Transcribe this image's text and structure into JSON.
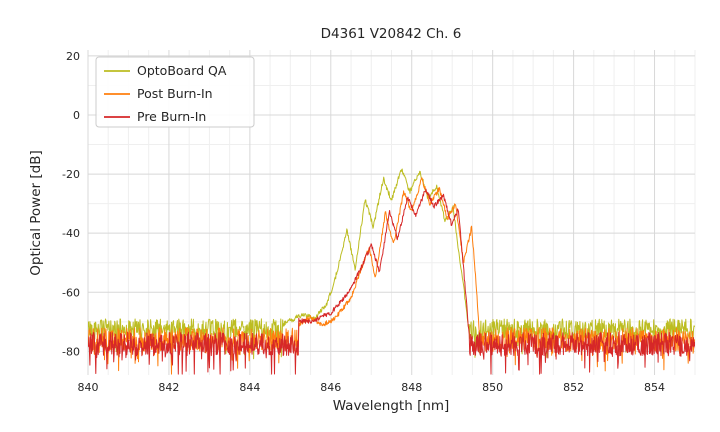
{
  "chart_data": {
    "type": "line",
    "title": "D4361 V20842 Ch. 6",
    "xlabel": "Wavelength [nm]",
    "ylabel": "Optical Power [dB]",
    "xlim": [
      840,
      855
    ],
    "ylim": [
      -88,
      22
    ],
    "xticks": [
      840,
      842,
      844,
      846,
      848,
      850,
      852,
      854
    ],
    "yticks": [
      20,
      0,
      -20,
      -40,
      -60,
      -80
    ],
    "grid": true,
    "legend_position": "upper left",
    "colors": {
      "grid_major": "#d8d8d8",
      "grid_minor": "#efefef",
      "text": "#262626",
      "background": "#ffffff"
    },
    "series": [
      {
        "name": "OptoBoard QA",
        "color": "#bcbd22",
        "baseline_db": -72.5,
        "noise_amp_db": 3.5,
        "spike_prob": 0.06,
        "spike_depth_db": 9,
        "peak_profile": [
          [
            844.8,
            -71
          ],
          [
            845.3,
            -67.5
          ],
          [
            845.6,
            -69
          ],
          [
            845.9,
            -64
          ],
          [
            846.1,
            -56
          ],
          [
            846.4,
            -39
          ],
          [
            846.6,
            -52
          ],
          [
            846.85,
            -28.5
          ],
          [
            847.05,
            -38
          ],
          [
            847.3,
            -21.5
          ],
          [
            847.5,
            -29
          ],
          [
            847.75,
            -18
          ],
          [
            847.95,
            -26
          ],
          [
            848.2,
            -19
          ],
          [
            848.4,
            -28
          ],
          [
            848.62,
            -24
          ],
          [
            848.82,
            -36
          ],
          [
            849.02,
            -31
          ],
          [
            849.18,
            -48
          ],
          [
            849.3,
            -60
          ],
          [
            849.4,
            -72
          ]
        ]
      },
      {
        "name": "Post Burn-In",
        "color": "#ff7f0e",
        "baseline_db": -76,
        "noise_amp_db": 4,
        "spike_prob": 0.08,
        "spike_depth_db": 10,
        "peak_profile": [
          [
            845.2,
            -71
          ],
          [
            845.5,
            -68.5
          ],
          [
            845.8,
            -71
          ],
          [
            846.1,
            -69
          ],
          [
            846.5,
            -62
          ],
          [
            846.75,
            -52
          ],
          [
            846.95,
            -45
          ],
          [
            847.1,
            -55
          ],
          [
            847.35,
            -33
          ],
          [
            847.55,
            -44
          ],
          [
            847.8,
            -26
          ],
          [
            848.0,
            -33
          ],
          [
            848.25,
            -21.5
          ],
          [
            848.45,
            -30
          ],
          [
            848.68,
            -25
          ],
          [
            848.88,
            -35
          ],
          [
            849.08,
            -30
          ],
          [
            849.28,
            -50
          ],
          [
            849.48,
            -38
          ],
          [
            849.58,
            -55
          ],
          [
            849.68,
            -76
          ]
        ]
      },
      {
        "name": "Pre Burn-In",
        "color": "#d62728",
        "baseline_db": -77.5,
        "noise_amp_db": 4,
        "spike_prob": 0.1,
        "spike_depth_db": 9,
        "peak_profile": [
          [
            845.2,
            -69.5
          ],
          [
            845.5,
            -70
          ],
          [
            846.0,
            -67
          ],
          [
            846.5,
            -59
          ],
          [
            846.8,
            -50
          ],
          [
            847.0,
            -44
          ],
          [
            847.2,
            -53
          ],
          [
            847.45,
            -33
          ],
          [
            847.65,
            -42
          ],
          [
            847.9,
            -28
          ],
          [
            848.1,
            -34
          ],
          [
            848.35,
            -25
          ],
          [
            848.55,
            -31
          ],
          [
            848.78,
            -27
          ],
          [
            848.98,
            -37
          ],
          [
            849.15,
            -32
          ],
          [
            849.3,
            -55
          ],
          [
            849.42,
            -75
          ]
        ]
      }
    ]
  }
}
